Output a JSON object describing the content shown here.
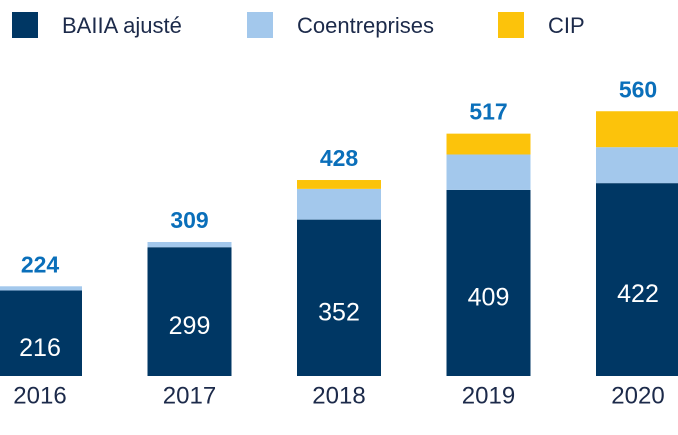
{
  "chart_data": {
    "type": "stacked-bar",
    "categories": [
      "2016",
      "2017",
      "2018",
      "2019",
      "2020"
    ],
    "series": [
      {
        "name": "BAIIA ajusté",
        "color": "#003764",
        "values": [
          216,
          299,
          352,
          409,
          422
        ]
      },
      {
        "name": "Coentreprises",
        "color": "#a3c8ec",
        "values": [
          8,
          10,
          59,
          68,
          69
        ]
      },
      {
        "name": "CIP",
        "color": "#fcc30b",
        "values": [
          0,
          0,
          17,
          40,
          69
        ]
      }
    ],
    "totals": [
      224,
      309,
      428,
      517,
      560
    ]
  }
}
